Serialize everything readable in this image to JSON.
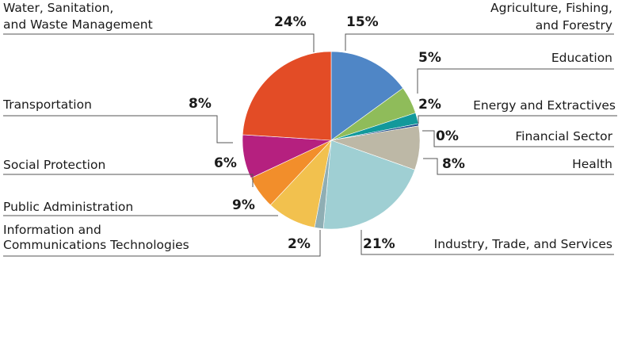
{
  "chart_data": {
    "type": "pie",
    "slices": [
      {
        "label": "Agriculture, Fishing, and Forestry",
        "label_lines": [
          "Agriculture, Fishing,",
          "and Forestry"
        ],
        "value": 15,
        "value_label": "15%",
        "color": "#4f86c6"
      },
      {
        "label": "Education",
        "label_lines": [
          "Education"
        ],
        "value": 5,
        "value_label": "5%",
        "color": "#8fbc5a"
      },
      {
        "label": "Energy and Extractives",
        "label_lines": [
          "Energy and Extractives"
        ],
        "value": 2,
        "value_label": "2%",
        "color": "#12999b"
      },
      {
        "label": "Financial Sector",
        "label_lines": [
          "Financial Sector"
        ],
        "value": 0.4,
        "value_label": "0%",
        "color": "#1f4e8c"
      },
      {
        "label": "Health",
        "label_lines": [
          "Health"
        ],
        "value": 8,
        "value_label": "8%",
        "color": "#bdb8a6"
      },
      {
        "label": "Industry, Trade, and Services",
        "label_lines": [
          "Industry, Trade, and Services"
        ],
        "value": 21,
        "value_label": "21%",
        "color": "#9fcfd3"
      },
      {
        "label": "Information and Communications Technologies",
        "label_lines": [
          "Information and",
          "Communications Technologies"
        ],
        "value": 1.6,
        "value_label": "2%",
        "color": "#8faeb4"
      },
      {
        "label": "Public Administration",
        "label_lines": [
          "Public Administration"
        ],
        "value": 9,
        "value_label": "9%",
        "color": "#f2c14e"
      },
      {
        "label": "Social Protection",
        "label_lines": [
          "Social Protection"
        ],
        "value": 6,
        "value_label": "6%",
        "color": "#f28e2b"
      },
      {
        "label": "Transportation",
        "label_lines": [
          "Transportation"
        ],
        "value": 8,
        "value_label": "8%",
        "color": "#b5207f"
      },
      {
        "label": "Water, Sanitation, and Waste Management",
        "label_lines": [
          "Water, Sanitation,",
          "and Waste Management"
        ],
        "value": 24,
        "value_label": "24%",
        "color": "#e34c26"
      }
    ]
  }
}
